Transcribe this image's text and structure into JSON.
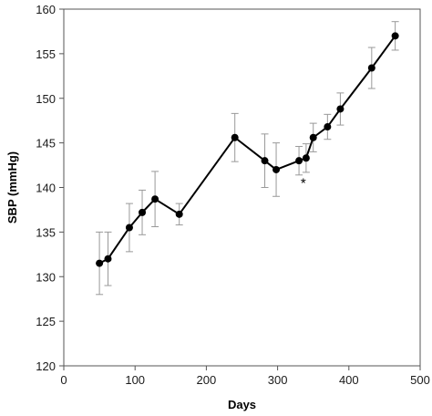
{
  "chart_data": {
    "type": "line",
    "title": "",
    "xlabel": "Days",
    "ylabel": "SBP (mmHg)",
    "xlim": [
      0,
      500
    ],
    "ylim": [
      120,
      160
    ],
    "xticks": [
      0,
      100,
      200,
      300,
      400,
      500
    ],
    "yticks": [
      120,
      125,
      130,
      135,
      140,
      145,
      150,
      155,
      160
    ],
    "grid": false,
    "legend": "none",
    "series": [
      {
        "x": [
          50,
          62,
          92,
          110,
          128,
          162,
          240,
          282,
          298,
          330,
          340,
          350,
          370,
          388,
          432,
          465
        ],
        "y": [
          131.5,
          132.0,
          135.5,
          137.2,
          138.7,
          137.0,
          145.6,
          143.0,
          142.0,
          143.0,
          143.3,
          145.6,
          146.8,
          148.8,
          153.4,
          157.0
        ],
        "err": [
          3.5,
          3.0,
          2.7,
          2.5,
          3.1,
          1.2,
          2.7,
          3.0,
          3.0,
          1.6,
          1.6,
          1.6,
          1.4,
          1.8,
          2.3,
          1.6
        ]
      }
    ],
    "annotations": [
      {
        "text": "*",
        "x": 336,
        "y": 140.5
      }
    ],
    "colors": {
      "line": "#000000",
      "error_bar": "#999999",
      "axis": "#555555"
    }
  }
}
